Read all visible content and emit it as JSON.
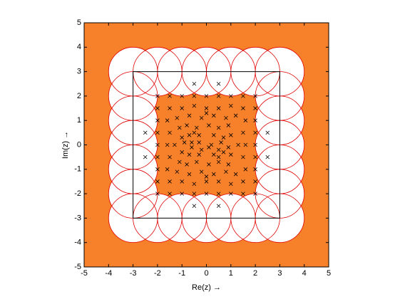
{
  "chart_data": {
    "type": "scatter",
    "xlabel": "Re(z) →",
    "ylabel": "Im(z) →",
    "xlim": [
      -5,
      5
    ],
    "ylim": [
      -5,
      5
    ],
    "xticks": [
      -5,
      -4,
      -3,
      -2,
      -1,
      0,
      1,
      2,
      3,
      4,
      5
    ],
    "yticks": [
      -5,
      -4,
      -3,
      -2,
      -1,
      0,
      1,
      2,
      3,
      4,
      5
    ],
    "background_color": "#f7802a",
    "circle_color": "#e00000",
    "marker_color": "#000000",
    "circles": {
      "radius": 1,
      "x": [
        -3,
        -2,
        -1,
        0,
        1,
        2,
        3,
        3,
        3,
        3,
        3,
        3,
        3,
        2,
        1,
        0,
        -1,
        -2,
        -3,
        -3,
        -3,
        -3,
        -3,
        -3
      ],
      "y": [
        -3,
        -3,
        -3,
        -3,
        -3,
        -3,
        -3,
        -2,
        -1,
        0,
        1,
        2,
        3,
        3,
        3,
        3,
        3,
        3,
        3,
        2,
        1,
        0,
        -1,
        -2
      ]
    },
    "square": {
      "x": [
        -3,
        3,
        3,
        -3,
        -3
      ],
      "y": [
        -3,
        -3,
        3,
        3,
        -3
      ]
    },
    "x": [
      -2,
      -1.5,
      -1,
      -0.5,
      0,
      0.5,
      1,
      1.5,
      2,
      -2,
      -1.5,
      -1,
      -0.5,
      0,
      0.5,
      1,
      1.5,
      2,
      -2,
      -2,
      -2,
      -2,
      -2,
      -2,
      -2,
      2,
      2,
      2,
      2,
      2,
      2,
      2,
      0.5,
      -0.5,
      -0.5,
      0.5,
      2.5,
      -2.5,
      2.5,
      -2.5,
      -1.5,
      -1,
      -0.5,
      0,
      0.5,
      1,
      1.5,
      -1.5,
      -1,
      -0.5,
      0,
      0.5,
      1,
      1.5,
      -1.6,
      -1.5,
      -1.6,
      -1.5,
      -1.6,
      1.6,
      1.5,
      1.6,
      1.5,
      1.6,
      -1.2,
      -0.7,
      -0.2,
      0.3,
      0.8,
      1.2,
      -1.2,
      -0.7,
      -0.2,
      0.3,
      0.8,
      1.2,
      -1.1,
      -0.8,
      -0.4,
      0.1,
      0.5,
      0.9,
      -1.1,
      -0.8,
      -0.4,
      0.1,
      0.5,
      0.9,
      -1,
      -0.7,
      -0.3,
      0.3,
      0.7,
      1,
      -1,
      -0.7,
      -0.3,
      0.3,
      0.7,
      1,
      -0.6,
      -0.3,
      0.2,
      0.6,
      -0.6,
      -0.2,
      0.1,
      0.5,
      -1.3,
      1.3,
      0,
      0,
      -0.5,
      0.5,
      -0.9,
      0.9
    ],
    "y": [
      -2,
      -2,
      -2,
      -2,
      -2,
      -2,
      -2,
      -2,
      -2,
      2,
      2,
      2,
      2,
      2,
      2,
      2,
      2,
      2,
      -1.5,
      -1,
      -0.5,
      0,
      0.5,
      1,
      1.5,
      -1.5,
      -1,
      -0.5,
      0,
      0.5,
      1,
      1.5,
      2.5,
      2.5,
      -2.5,
      -2.5,
      0.5,
      0.5,
      -0.5,
      -0.5,
      1.5,
      1.5,
      1.6,
      1.5,
      1.5,
      1.6,
      1.5,
      -1.5,
      -1.5,
      -1.6,
      -1.5,
      -1.5,
      -1.6,
      -1.5,
      1,
      0.5,
      0,
      -0.5,
      -1,
      1,
      0.5,
      0,
      -0.5,
      -1,
      1.1,
      1.2,
      1.1,
      1.2,
      1.1,
      1.2,
      -1.1,
      -1.2,
      -1.1,
      -1.2,
      -1.1,
      -1.2,
      0.7,
      0.8,
      0.7,
      0.8,
      0.7,
      0.8,
      -0.7,
      -0.8,
      -0.7,
      -0.8,
      -0.7,
      -0.8,
      0.3,
      0.4,
      0.4,
      0.4,
      0.3,
      0.4,
      -0.3,
      -0.4,
      -0.4,
      -0.4,
      -0.3,
      -0.4,
      0.1,
      0.1,
      0,
      0.1,
      -0.1,
      -0.2,
      -0.1,
      -0.2,
      0,
      0,
      1.3,
      -1.3,
      0.5,
      -0.5,
      0.1,
      -0.1
    ]
  }
}
